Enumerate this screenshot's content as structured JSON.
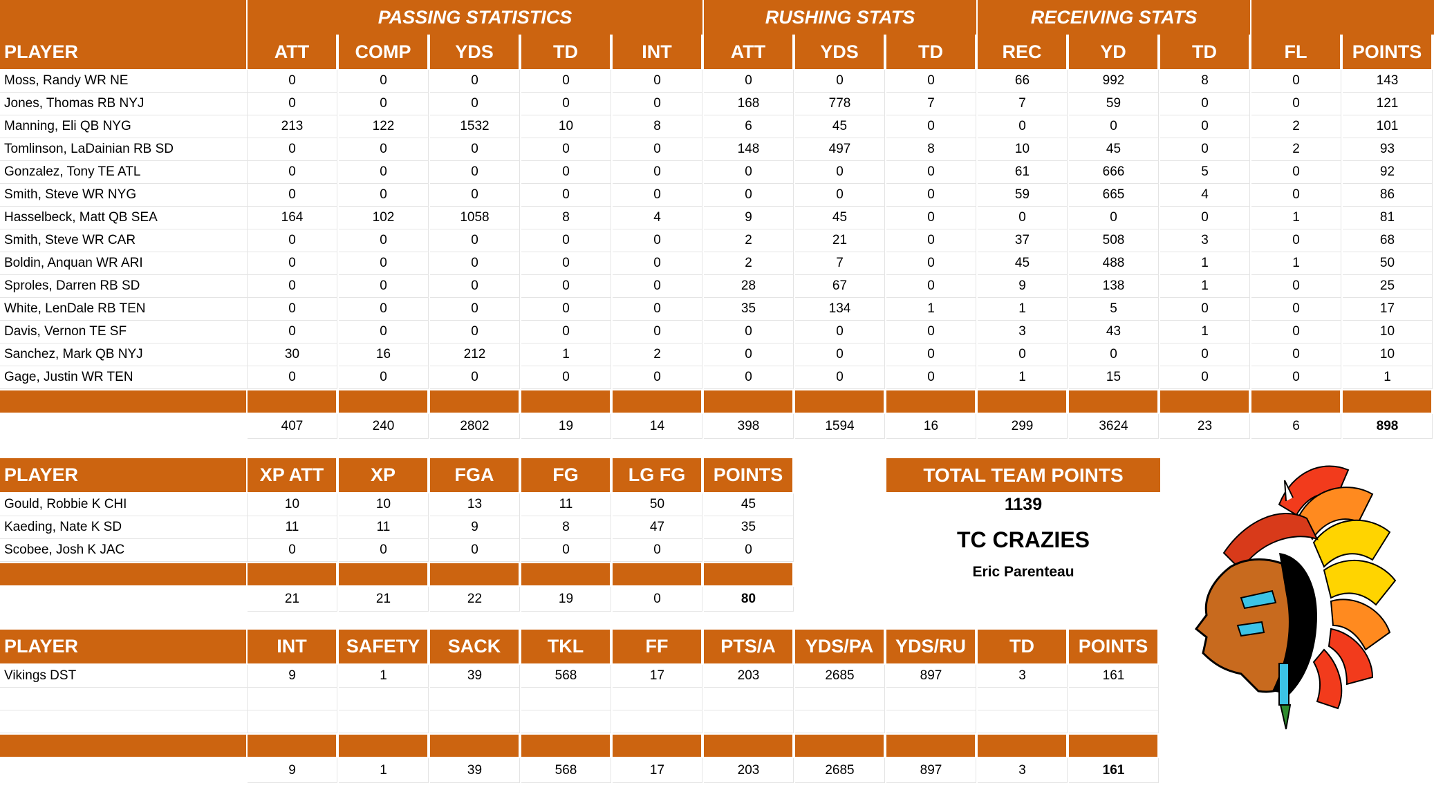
{
  "colors": {
    "header_bg": "#cc6410",
    "header_text": "#ffffff"
  },
  "offense": {
    "group_headers": [
      "PASSING STATISTICS",
      "RUSHING STATS",
      "RECEIVING STATS"
    ],
    "columns": [
      "PLAYER",
      "ATT",
      "COMP",
      "YDS",
      "TD",
      "INT",
      "ATT",
      "YDS",
      "TD",
      "REC",
      "YD",
      "TD",
      "FL",
      "POINTS"
    ],
    "rows": [
      [
        "Moss, Randy WR NE",
        "0",
        "0",
        "0",
        "0",
        "0",
        "0",
        "0",
        "0",
        "66",
        "992",
        "8",
        "0",
        "143"
      ],
      [
        "Jones, Thomas RB NYJ",
        "0",
        "0",
        "0",
        "0",
        "0",
        "168",
        "778",
        "7",
        "7",
        "59",
        "0",
        "0",
        "121"
      ],
      [
        "Manning, Eli QB NYG",
        "213",
        "122",
        "1532",
        "10",
        "8",
        "6",
        "45",
        "0",
        "0",
        "0",
        "0",
        "2",
        "101"
      ],
      [
        "Tomlinson, LaDainian RB SD",
        "0",
        "0",
        "0",
        "0",
        "0",
        "148",
        "497",
        "8",
        "10",
        "45",
        "0",
        "2",
        "93"
      ],
      [
        "Gonzalez, Tony TE ATL",
        "0",
        "0",
        "0",
        "0",
        "0",
        "0",
        "0",
        "0",
        "61",
        "666",
        "5",
        "0",
        "92"
      ],
      [
        "Smith, Steve WR NYG",
        "0",
        "0",
        "0",
        "0",
        "0",
        "0",
        "0",
        "0",
        "59",
        "665",
        "4",
        "0",
        "86"
      ],
      [
        "Hasselbeck, Matt QB SEA",
        "164",
        "102",
        "1058",
        "8",
        "4",
        "9",
        "45",
        "0",
        "0",
        "0",
        "0",
        "1",
        "81"
      ],
      [
        "Smith, Steve WR CAR",
        "0",
        "0",
        "0",
        "0",
        "0",
        "2",
        "21",
        "0",
        "37",
        "508",
        "3",
        "0",
        "68"
      ],
      [
        "Boldin, Anquan WR ARI",
        "0",
        "0",
        "0",
        "0",
        "0",
        "2",
        "7",
        "0",
        "45",
        "488",
        "1",
        "1",
        "50"
      ],
      [
        "Sproles, Darren RB SD",
        "0",
        "0",
        "0",
        "0",
        "0",
        "28",
        "67",
        "0",
        "9",
        "138",
        "1",
        "0",
        "25"
      ],
      [
        "White, LenDale RB TEN",
        "0",
        "0",
        "0",
        "0",
        "0",
        "35",
        "134",
        "1",
        "1",
        "5",
        "0",
        "0",
        "17"
      ],
      [
        "Davis, Vernon TE SF",
        "0",
        "0",
        "0",
        "0",
        "0",
        "0",
        "0",
        "0",
        "3",
        "43",
        "1",
        "0",
        "10"
      ],
      [
        "Sanchez, Mark QB NYJ",
        "30",
        "16",
        "212",
        "1",
        "2",
        "0",
        "0",
        "0",
        "0",
        "0",
        "0",
        "0",
        "10"
      ],
      [
        "Gage, Justin WR TEN",
        "0",
        "0",
        "0",
        "0",
        "0",
        "0",
        "0",
        "0",
        "1",
        "15",
        "0",
        "0",
        "1"
      ]
    ],
    "totals": [
      "407",
      "240",
      "2802",
      "19",
      "14",
      "398",
      "1594",
      "16",
      "299",
      "3624",
      "23",
      "6",
      "898"
    ]
  },
  "kicking": {
    "columns": [
      "PLAYER",
      "XP ATT",
      "XP",
      "FGA",
      "FG",
      "LG FG",
      "POINTS"
    ],
    "rows": [
      [
        "Gould, Robbie K CHI",
        "10",
        "10",
        "13",
        "11",
        "50",
        "45"
      ],
      [
        "Kaeding, Nate K SD",
        "11",
        "11",
        "9",
        "8",
        "47",
        "35"
      ],
      [
        "Scobee, Josh K JAC",
        "0",
        "0",
        "0",
        "0",
        "0",
        "0"
      ]
    ],
    "totals": [
      "21",
      "21",
      "22",
      "19",
      "0",
      "80"
    ]
  },
  "defense": {
    "columns": [
      "PLAYER",
      "INT",
      "SAFETY",
      "SACK",
      "TKL",
      "FF",
      "PTS/A",
      "YDS/PA",
      "YDS/RU",
      "TD",
      "POINTS"
    ],
    "rows": [
      [
        "Vikings DST",
        "9",
        "1",
        "39",
        "568",
        "17",
        "203",
        "2685",
        "897",
        "3",
        "161"
      ]
    ],
    "totals": [
      "9",
      "1",
      "39",
      "568",
      "17",
      "203",
      "2685",
      "897",
      "3",
      "161"
    ]
  },
  "team": {
    "total_label": "TOTAL TEAM POINTS",
    "total_points": "1139",
    "name": "TC CRAZIES",
    "owner": "Eric Parenteau",
    "logo": "chief-headdress-logo"
  }
}
